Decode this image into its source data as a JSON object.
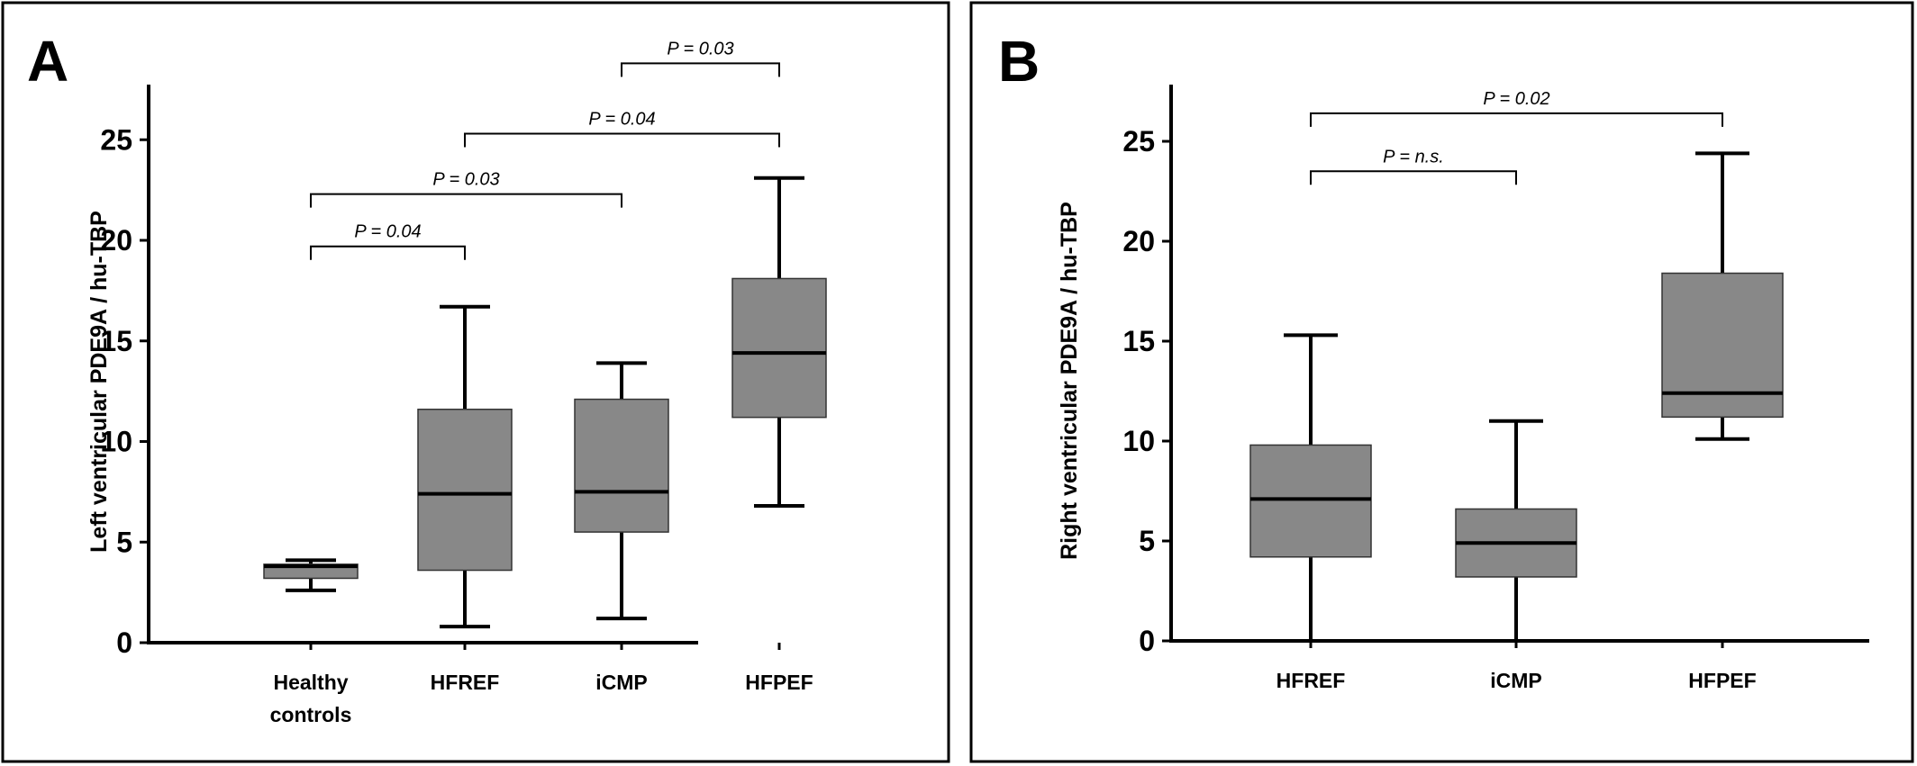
{
  "colors": {
    "box_fill": "#888888",
    "stroke": "#000000",
    "background": "#ffffff"
  },
  "chart_data": [
    {
      "type": "box",
      "panel_letter": "A",
      "title": "",
      "ylabel": "Left ventricular PDE9A / hu-TBP",
      "xlabel": "",
      "ylim": [
        0,
        27.5
      ],
      "yticks": [
        0,
        5,
        10,
        15,
        20,
        25
      ],
      "grid": false,
      "categories": [
        {
          "id": "healthy",
          "label_lines": [
            "Healthy",
            "controls"
          ]
        },
        {
          "id": "hfref",
          "label_lines": [
            "HFREF"
          ]
        },
        {
          "id": "icmp",
          "label_lines": [
            "iCMP"
          ]
        },
        {
          "id": "hfpef",
          "label_lines": [
            "HFPEF"
          ]
        }
      ],
      "boxes": [
        {
          "category": "healthy",
          "min": 2.6,
          "q1": 3.2,
          "median": 3.8,
          "q3": 3.9,
          "max": 4.1
        },
        {
          "category": "hfref",
          "min": 0.8,
          "q1": 3.6,
          "median": 7.4,
          "q3": 11.6,
          "max": 16.7
        },
        {
          "category": "icmp",
          "min": 1.2,
          "q1": 5.5,
          "median": 7.5,
          "q3": 12.1,
          "max": 13.9
        },
        {
          "category": "hfpef",
          "min": 6.8,
          "q1": 11.2,
          "median": 14.4,
          "q3": 18.1,
          "max": 23.1
        }
      ],
      "comparisons": [
        {
          "from": "healthy",
          "to": "hfref",
          "label": "P = 0.04",
          "y": 19.7
        },
        {
          "from": "healthy",
          "to": "icmp",
          "label": "P = 0.03",
          "y": 22.3
        },
        {
          "from": "hfref",
          "to": "hfpef",
          "label": "P = 0.04",
          "y": 25.3
        },
        {
          "from": "icmp",
          "to": "hfpef",
          "label": "P = 0.03",
          "y": 28.8
        }
      ]
    },
    {
      "type": "box",
      "panel_letter": "B",
      "title": "",
      "ylabel": "Right ventricular PDE9A / hu-TBP",
      "xlabel": "",
      "ylim": [
        0,
        27.5
      ],
      "yticks": [
        0,
        5,
        10,
        15,
        20,
        25
      ],
      "grid": false,
      "categories": [
        {
          "id": "hfref",
          "label_lines": [
            "HFREF"
          ]
        },
        {
          "id": "icmp",
          "label_lines": [
            "iCMP"
          ]
        },
        {
          "id": "hfpef",
          "label_lines": [
            "HFPEF"
          ]
        }
      ],
      "boxes": [
        {
          "category": "hfref",
          "min": 0,
          "q1": 4.2,
          "median": 7.1,
          "q3": 9.8,
          "max": 15.3
        },
        {
          "category": "icmp",
          "min": 0,
          "q1": 3.2,
          "median": 4.9,
          "q3": 6.6,
          "max": 11.0
        },
        {
          "category": "hfpef",
          "min": 10.1,
          "q1": 11.2,
          "median": 12.4,
          "q3": 18.4,
          "max": 24.4
        }
      ],
      "comparisons": [
        {
          "from": "hfref",
          "to": "icmp",
          "label": "P = n.s.",
          "y": 23.5
        },
        {
          "from": "hfref",
          "to": "hfpef",
          "label": "P = 0.02",
          "y": 26.4
        }
      ]
    }
  ]
}
